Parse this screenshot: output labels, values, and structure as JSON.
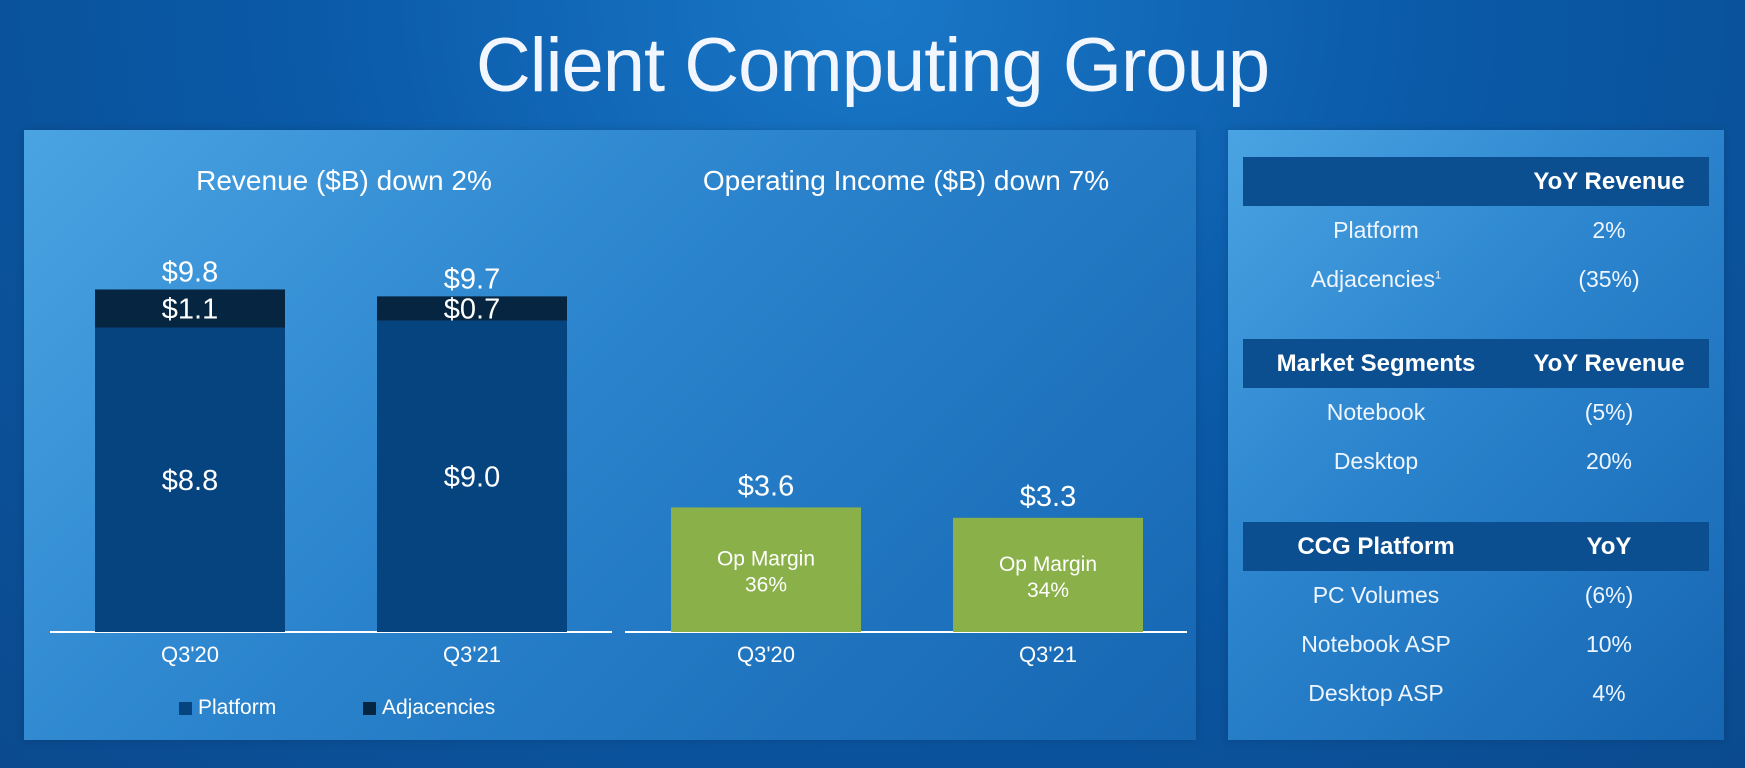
{
  "title": "Client Computing Group",
  "chart_data": [
    {
      "type": "bar",
      "stacked": true,
      "title": "Revenue ($B) down 2%",
      "categories": [
        "Q3'20",
        "Q3'21"
      ],
      "series": [
        {
          "name": "Platform",
          "values": [
            8.8,
            9.0
          ],
          "labels": [
            "$8.8",
            "$9.0"
          ],
          "color": "#06447f"
        },
        {
          "name": "Adjacencies",
          "values": [
            1.1,
            0.7
          ],
          "labels": [
            "$1.1",
            "$0.7"
          ],
          "color": "#062540"
        }
      ],
      "totals": [
        9.8,
        9.7
      ],
      "total_labels": [
        "$9.8",
        "$9.7"
      ],
      "ylim": [
        0,
        10.5
      ],
      "legend": "bottom"
    },
    {
      "type": "bar",
      "title": "Operating Income ($B) down 7%",
      "categories": [
        "Q3'20",
        "Q3'21"
      ],
      "values": [
        3.6,
        3.3
      ],
      "value_labels": [
        "$3.6",
        "$3.3"
      ],
      "inner_labels": [
        [
          "Op Margin",
          "36%"
        ],
        [
          "Op Margin",
          "34%"
        ]
      ],
      "color": "#8ab04a",
      "ylim": [
        0,
        10.5
      ]
    }
  ],
  "tables": [
    {
      "headers": [
        "",
        "YoY Revenue"
      ],
      "rows": [
        {
          "label": "Platform",
          "value": "2%"
        },
        {
          "label": "Adjacencies",
          "sup": "1",
          "value": "(35%)"
        }
      ]
    },
    {
      "headers": [
        "Market Segments",
        "YoY Revenue"
      ],
      "rows": [
        {
          "label": "Notebook",
          "value": "(5%)"
        },
        {
          "label": "Desktop",
          "value": "20%"
        }
      ]
    },
    {
      "headers": [
        "CCG Platform",
        "YoY"
      ],
      "rows": [
        {
          "label": "PC Volumes",
          "value": "(6%)"
        },
        {
          "label": "Notebook ASP",
          "value": "10%"
        },
        {
          "label": "Desktop ASP",
          "value": "4%"
        }
      ]
    }
  ]
}
